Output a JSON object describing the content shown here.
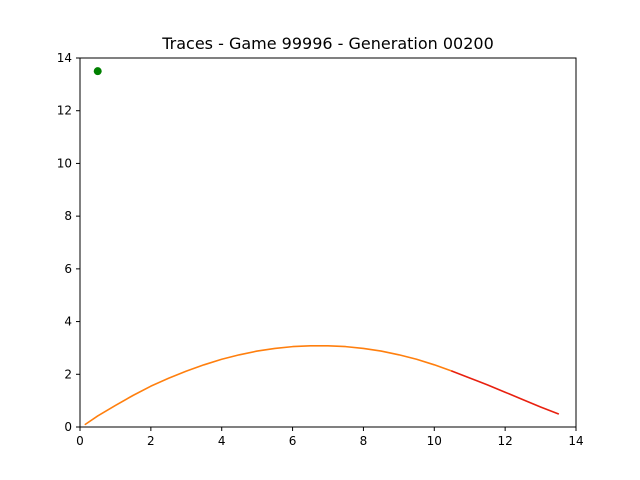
{
  "chart_data": {
    "type": "line",
    "title": "Traces - Game 99996 - Generation 00200",
    "xlabel": "",
    "ylabel": "",
    "xlim": [
      0,
      14
    ],
    "ylim": [
      0,
      14
    ],
    "xticks": [
      "0",
      "2",
      "4",
      "6",
      "8",
      "10",
      "12",
      "14"
    ],
    "yticks": [
      "0",
      "2",
      "4",
      "6",
      "8",
      "10",
      "12",
      "14"
    ],
    "grid": false,
    "series": [
      {
        "color": "#ff7f0e",
        "x": [
          0.15,
          0.5,
          1.0,
          1.5,
          2.0,
          2.5,
          3.0,
          3.5,
          4.0,
          4.5,
          5.0,
          5.5,
          6.0,
          6.5,
          7.0,
          7.5,
          8.0,
          8.5,
          9.0,
          9.5,
          10.0,
          10.5
        ],
        "y": [
          0.1,
          0.42,
          0.82,
          1.2,
          1.55,
          1.85,
          2.12,
          2.36,
          2.57,
          2.74,
          2.88,
          2.98,
          3.05,
          3.08,
          3.08,
          3.05,
          2.98,
          2.88,
          2.74,
          2.57,
          2.36,
          2.12
        ]
      },
      {
        "color": "#e8200f",
        "x": [
          10.5,
          11.0,
          11.5,
          12.0,
          12.5,
          13.0,
          13.5
        ],
        "y": [
          2.12,
          1.86,
          1.6,
          1.32,
          1.04,
          0.76,
          0.5
        ]
      }
    ],
    "points": [
      {
        "x": 0.5,
        "y": 13.5,
        "color": "#008000"
      }
    ]
  }
}
